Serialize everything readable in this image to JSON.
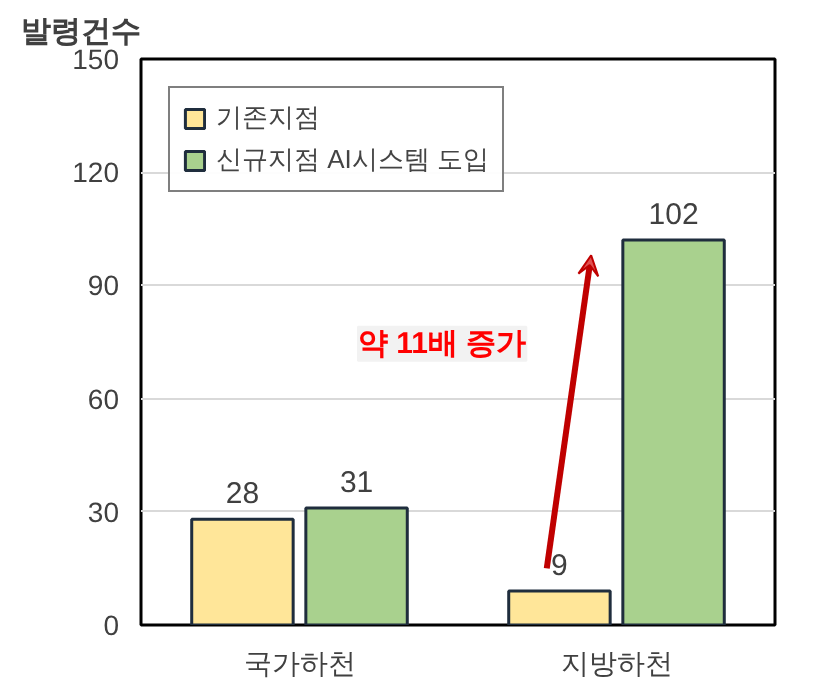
{
  "chart_data": {
    "type": "bar",
    "ylabel": "발령건수",
    "categories": [
      "국가하천",
      "지방하천"
    ],
    "series": [
      {
        "name": "기존지점",
        "color": "#ffe699",
        "values": [
          28,
          9
        ]
      },
      {
        "name": "신규지점 AI시스템 도입",
        "color": "#a9d18e",
        "values": [
          31,
          102
        ]
      }
    ],
    "ylim": [
      0,
      150
    ],
    "yticks": [
      0,
      30,
      60,
      90,
      120,
      150
    ],
    "grid": "y",
    "legend": "top left",
    "data_labels": true,
    "annotations": [
      "약 11배 증가"
    ]
  }
}
